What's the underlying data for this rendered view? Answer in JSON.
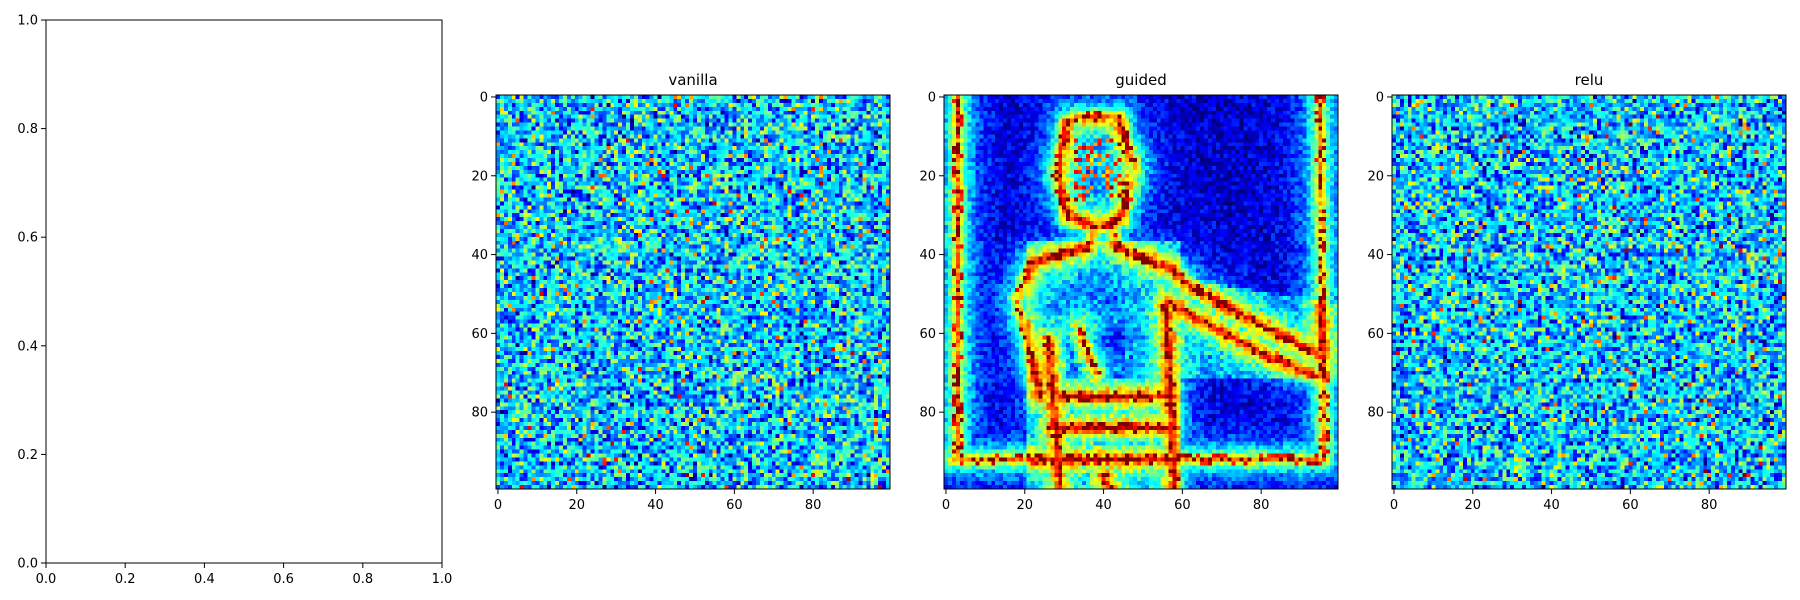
{
  "chart_data": [
    {
      "type": "line",
      "title": "",
      "xlabel": "",
      "ylabel": "",
      "xlim": [
        0.0,
        1.0
      ],
      "ylim": [
        0.0,
        1.0
      ],
      "xticks": [
        "0.0",
        "0.2",
        "0.4",
        "0.6",
        "0.8",
        "1.0"
      ],
      "yticks": [
        "0.0",
        "0.2",
        "0.4",
        "0.6",
        "0.8",
        "1.0"
      ],
      "series": [],
      "grid": false
    },
    {
      "type": "heatmap",
      "title": "vanilla",
      "pattern": "random-noise",
      "colormap": "jet",
      "shape": [
        100,
        100
      ],
      "xticks": [
        "0",
        "20",
        "40",
        "60",
        "80"
      ],
      "yticks": [
        "0",
        "20",
        "40",
        "60",
        "80"
      ],
      "seed": 11
    },
    {
      "type": "heatmap",
      "title": "guided",
      "pattern": "person-silhouette-edges",
      "colormap": "jet",
      "shape": [
        100,
        100
      ],
      "xticks": [
        "0",
        "20",
        "40",
        "60",
        "80"
      ],
      "yticks": [
        "0",
        "20",
        "40",
        "60",
        "80"
      ],
      "seed": 23
    },
    {
      "type": "heatmap",
      "title": "relu",
      "pattern": "random-noise",
      "colormap": "jet",
      "shape": [
        100,
        100
      ],
      "xticks": [
        "0",
        "20",
        "40",
        "60",
        "80"
      ],
      "yticks": [
        "0",
        "20",
        "40",
        "60",
        "80"
      ],
      "seed": 37
    }
  ]
}
